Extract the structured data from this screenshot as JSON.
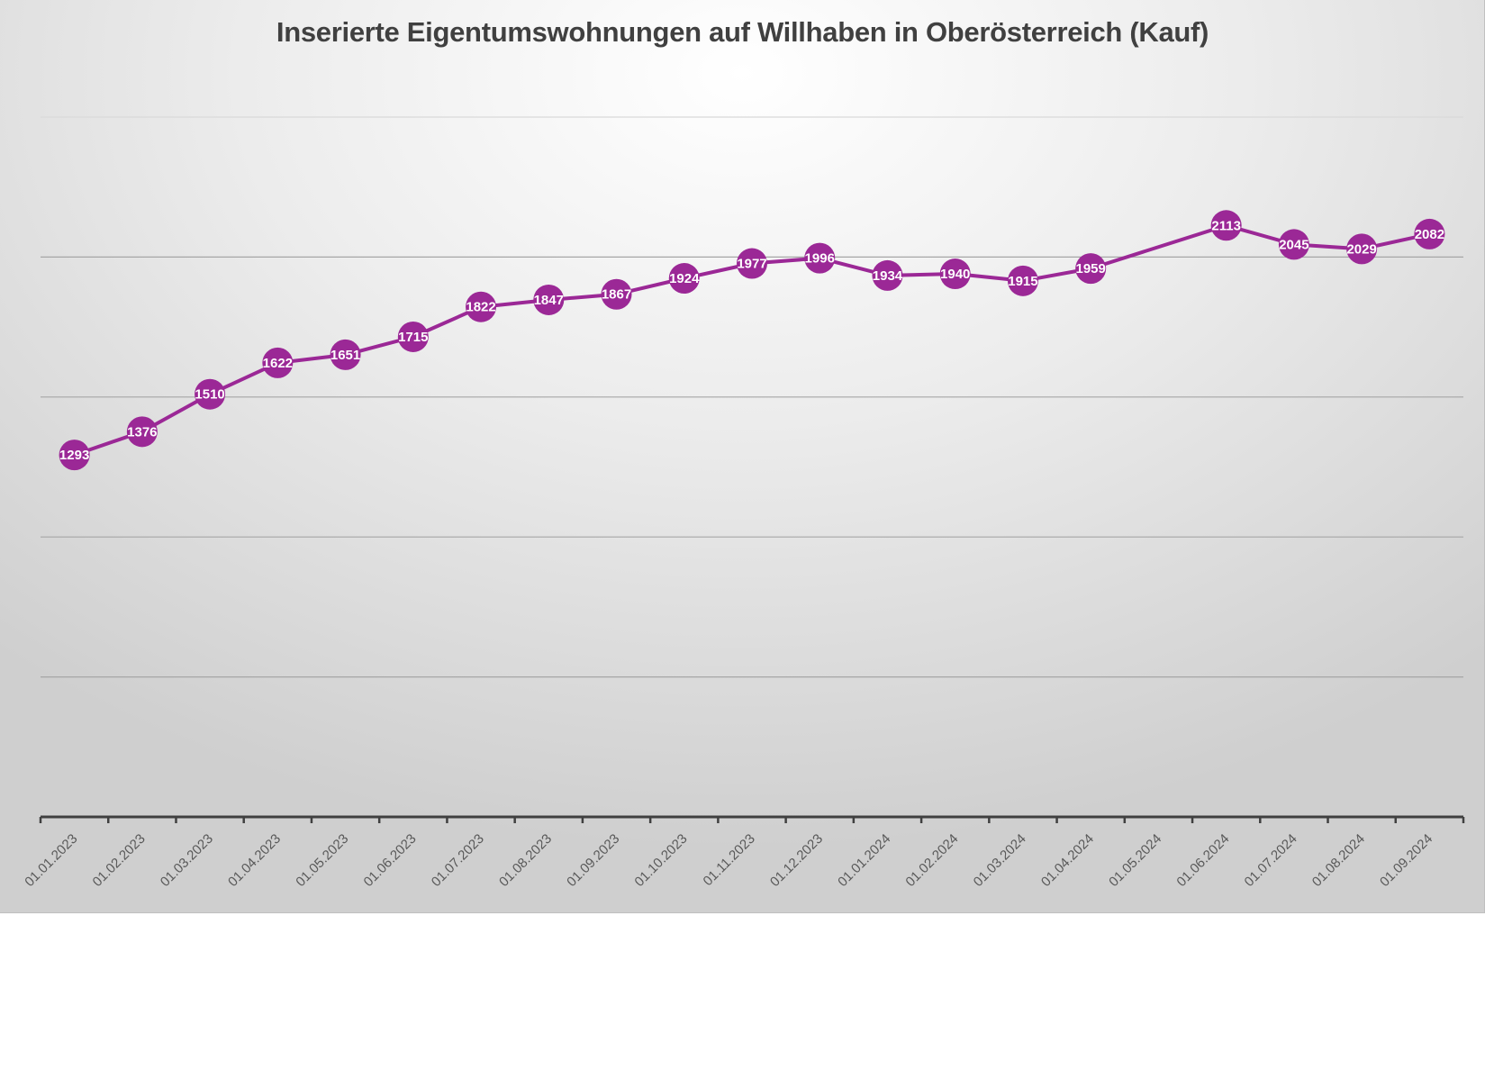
{
  "chart_data": {
    "type": "line",
    "title": "Inserierte Eigentumswohnungen auf Willhaben in Oberösterreich (Kauf)",
    "xlabel": "",
    "ylabel": "",
    "ylim": [
      0,
      2500
    ],
    "y_gridlines": [
      500,
      1000,
      1500,
      2000,
      2500
    ],
    "grid": true,
    "legend": "none",
    "categories": [
      "01.01.2023",
      "01.02.2023",
      "01.03.2023",
      "01.04.2023",
      "01.05.2023",
      "01.06.2023",
      "01.07.2023",
      "01.08.2023",
      "01.09.2023",
      "01.10.2023",
      "01.11.2023",
      "01.12.2023",
      "01.01.2024",
      "01.02.2024",
      "01.03.2024",
      "01.04.2024",
      "01.05.2024",
      "01.06.2024",
      "01.07.2024",
      "01.08.2024",
      "01.09.2024"
    ],
    "series": [
      {
        "values": [
          1293,
          1376,
          1510,
          1622,
          1651,
          1715,
          1822,
          1847,
          1867,
          1924,
          1977,
          1996,
          1934,
          1940,
          1915,
          1959,
          null,
          2113,
          2045,
          2029,
          2082
        ],
        "color": "#9b2896",
        "marker": "circle",
        "data_labels": true
      }
    ],
    "colors": {
      "series": "#9b2896",
      "label_text": "#ffffff",
      "title": "#404040",
      "axis": "#404040"
    }
  }
}
